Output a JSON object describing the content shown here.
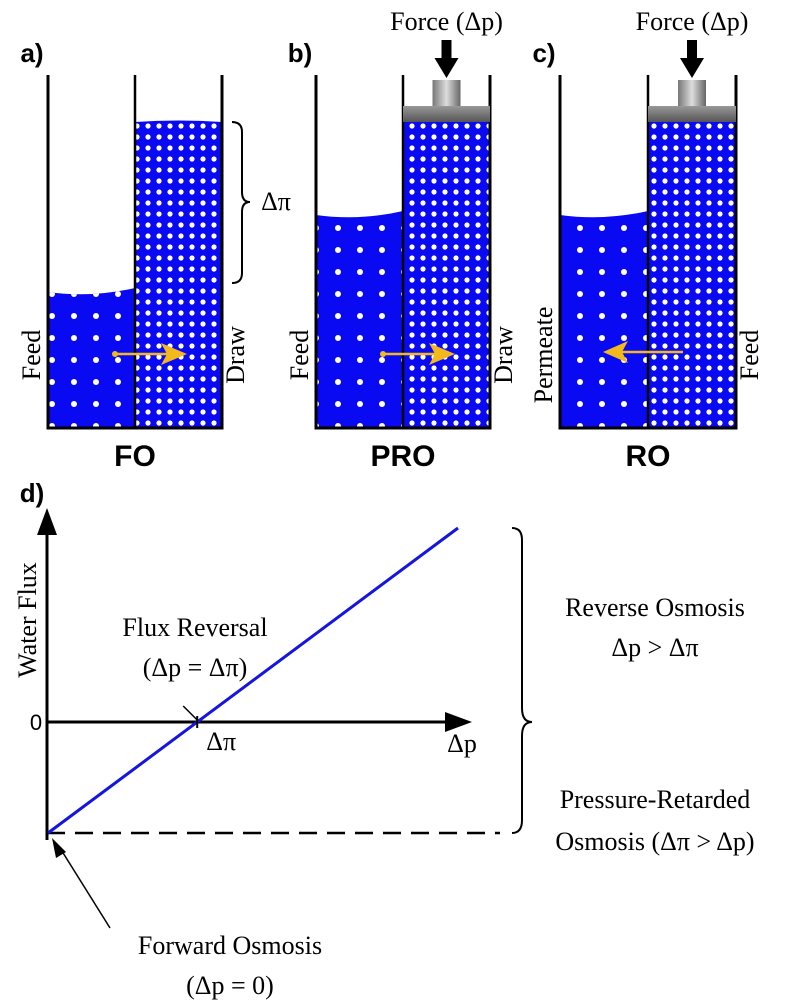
{
  "panels": [
    {
      "label": "a)",
      "title": "FO",
      "left_label": "Feed",
      "right_label": "Draw",
      "osmotic_pressure": "Δπ"
    },
    {
      "label": "b)",
      "title": "PRO",
      "left_label": "Feed",
      "right_label": "Draw",
      "force": "Force (Δp)"
    },
    {
      "label": "c)",
      "title": "RO",
      "left_label": "Permeate",
      "right_label": "Feed",
      "force": "Force (Δp)"
    }
  ],
  "graph": {
    "label": "d)",
    "y_axis_label": "Water Flux",
    "origin_label": "0",
    "x_crossing_label": "Δπ",
    "x_axis_label": "Δp",
    "crossing_annotation": [
      "Flux Reversal",
      "(Δp = Δπ)"
    ],
    "upper_region": [
      "Reverse Osmosis",
      "Δp > Δπ"
    ],
    "lower_region": [
      "Pressure-Retarded",
      "Osmosis (Δπ > Δp)"
    ],
    "start_annotation": [
      "Forward Osmosis",
      "(Δp = 0)"
    ]
  }
}
